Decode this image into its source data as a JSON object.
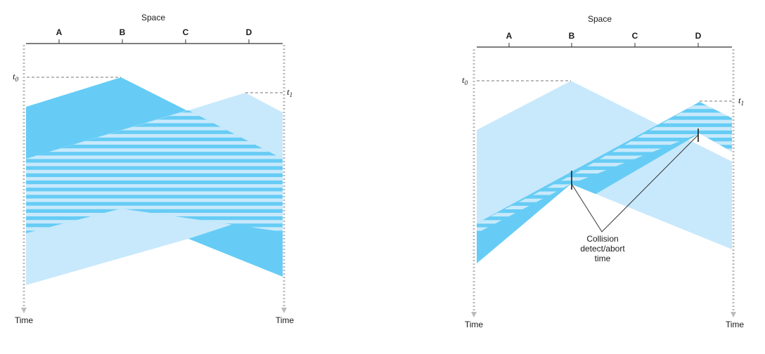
{
  "colors": {
    "dark_blue": "#66ccf5",
    "light_blue": "#c8e9fb",
    "axis": "#333333",
    "time_line": "#bbbbbb",
    "dash": "#777777"
  },
  "left": {
    "space_label": "Space",
    "nodes": [
      "A",
      "B",
      "C",
      "D"
    ],
    "t0": {
      "main": "t",
      "sub": "0"
    },
    "t1": {
      "main": "t",
      "sub": "1"
    },
    "time_labels": [
      "Time",
      "Time"
    ]
  },
  "right": {
    "space_label": "Space",
    "nodes": [
      "A",
      "B",
      "C",
      "D"
    ],
    "t0": {
      "main": "t",
      "sub": "0"
    },
    "t1": {
      "main": "t",
      "sub": "1"
    },
    "time_labels": [
      "Time",
      "Time"
    ],
    "callout": [
      "Collision",
      "detect/abort",
      "time"
    ]
  }
}
